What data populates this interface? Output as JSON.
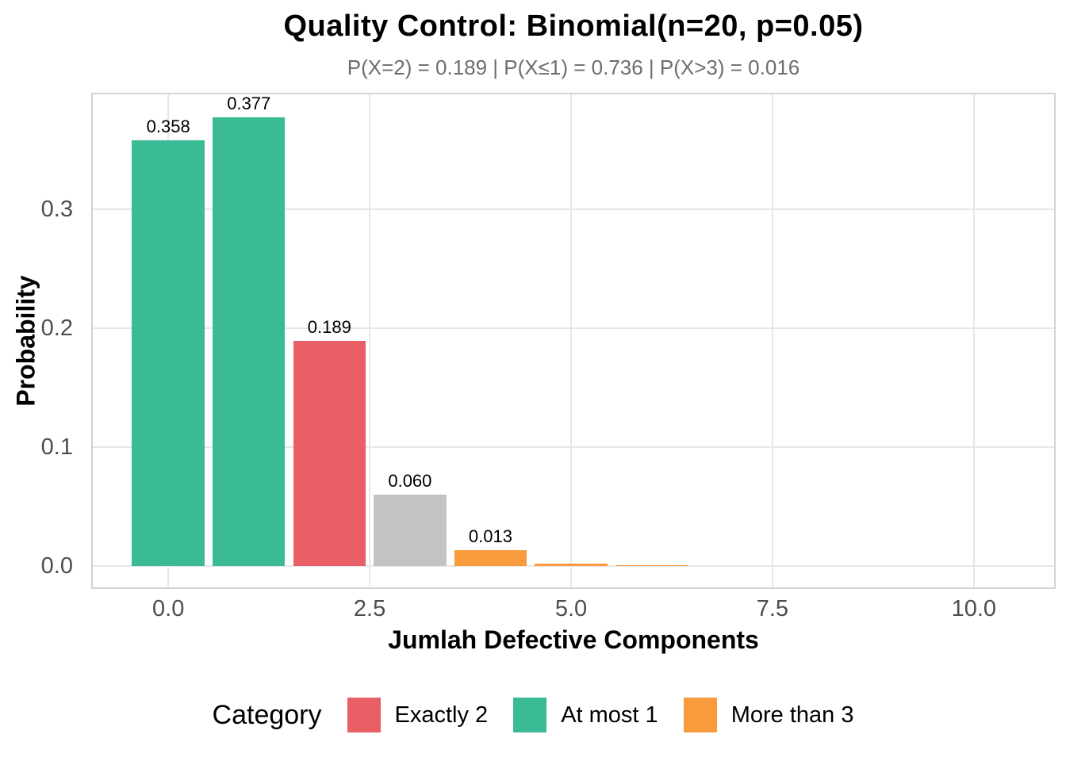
{
  "chart_data": {
    "type": "bar",
    "title": "Quality Control: Binomial(n=20, p=0.05)",
    "subtitle": "P(X=2) = 0.189 | P(X≤1) = 0.736 | P(X>3) = 0.016",
    "xlabel": "Jumlah Defective Components",
    "ylabel": "Probability",
    "bars": [
      {
        "x": 0,
        "value": 0.358,
        "label": "0.358",
        "category": "At most 1",
        "color": "#3abb96"
      },
      {
        "x": 1,
        "value": 0.377,
        "label": "0.377",
        "category": "At most 1",
        "color": "#3abb96"
      },
      {
        "x": 2,
        "value": 0.189,
        "label": "0.189",
        "category": "Exactly 2",
        "color": "#e95f66"
      },
      {
        "x": 3,
        "value": 0.06,
        "label": "0.060",
        "category": "Other",
        "color": "#c3c3c3"
      },
      {
        "x": 4,
        "value": 0.013,
        "label": "0.013",
        "category": "More than 3",
        "color": "#f89b3d"
      },
      {
        "x": 5,
        "value": 0.002,
        "label": "",
        "category": "More than 3",
        "color": "#f89b3d"
      },
      {
        "x": 6,
        "value": 0.0004,
        "label": "",
        "category": "More than 3",
        "color": "#f89b3d"
      }
    ],
    "bar_width": 0.9,
    "x_ticks": [
      {
        "value": 0,
        "label": "0.0"
      },
      {
        "value": 2.5,
        "label": "2.5"
      },
      {
        "value": 5,
        "label": "5.0"
      },
      {
        "value": 7.5,
        "label": "7.5"
      },
      {
        "value": 10,
        "label": "10.0"
      }
    ],
    "y_ticks": [
      {
        "value": 0.0,
        "label": "0.0"
      },
      {
        "value": 0.1,
        "label": "0.1"
      },
      {
        "value": 0.2,
        "label": "0.2"
      },
      {
        "value": 0.3,
        "label": "0.3"
      }
    ],
    "xlim": [
      -0.96,
      11.02
    ],
    "ylim": [
      -0.02,
      0.398
    ],
    "grid": "major-only",
    "legend": {
      "title": "Category",
      "position": "bottom",
      "entries": [
        {
          "label": "Exactly 2",
          "color": "#e95f66"
        },
        {
          "label": "At most 1",
          "color": "#3abb96"
        },
        {
          "label": "More than 3",
          "color": "#f89b3d"
        }
      ]
    },
    "colors": {
      "at_most_1": "#3abb96",
      "exactly_2": "#e95f66",
      "more_than_3": "#f89b3d",
      "other_gray": "#c3c3c3",
      "gridline": "#e7e7e7",
      "panel_border": "#d3d3d3",
      "tick_text": "#4d4d4d",
      "subtitle_text": "#6d6d6d"
    }
  }
}
